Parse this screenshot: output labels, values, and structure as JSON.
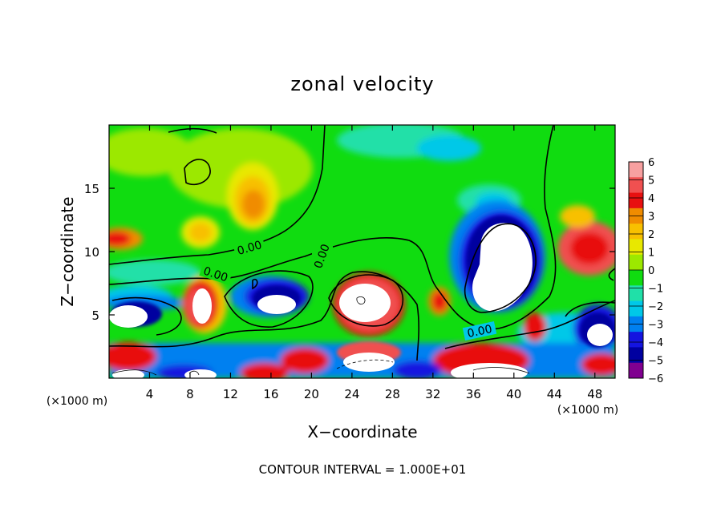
{
  "chart_data": {
    "type": "heatmap",
    "title": "zonal velocity",
    "xlabel": "X−coordinate",
    "ylabel": "Z−coordinate",
    "x_unit_left": "(×1000 m)",
    "x_unit_right": "(×1000 m)",
    "xlim": [
      0,
      50
    ],
    "ylim": [
      0,
      20
    ],
    "x_ticks": [
      4,
      8,
      12,
      16,
      20,
      24,
      28,
      32,
      36,
      40,
      44,
      48
    ],
    "y_ticks": [
      5,
      10,
      15
    ],
    "colorbar": {
      "levels": [
        6,
        5,
        4,
        3,
        2,
        1,
        0,
        -1,
        -2,
        -3,
        -4,
        -5,
        -6
      ],
      "labels": [
        "6",
        "5",
        "4",
        "3",
        "2",
        "1",
        "0",
        "−1",
        "−2",
        "−3",
        "−4",
        "−5",
        "−6"
      ],
      "colors": [
        "#f7a0a0",
        "#f05050",
        "#e81010",
        "#f08c00",
        "#f8c000",
        "#e8e800",
        "#9ce800",
        "#10dc10",
        "#20e0a8",
        "#00c8e8",
        "#0080f0",
        "#1414e0",
        "#0000a0",
        "#800090"
      ]
    },
    "contour_labels": [
      "0.00",
      "0.00",
      "0.00",
      "0.00"
    ],
    "footer": "CONTOUR INTERVAL = 1.000E+01"
  }
}
